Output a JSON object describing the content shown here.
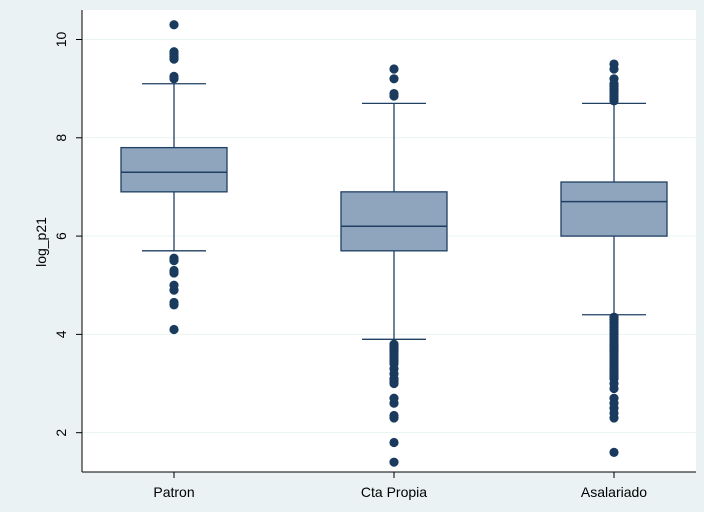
{
  "chart_data": {
    "type": "box",
    "ylabel": "log_p21",
    "ylim": [
      1.2,
      10.6
    ],
    "yticks": [
      2,
      4,
      6,
      8,
      10
    ],
    "grid": true,
    "categories": [
      "Patron",
      "Cta Propia",
      "Asalariado"
    ],
    "boxes": [
      {
        "category": "Patron",
        "whisker_low": 5.7,
        "q1": 6.9,
        "median": 7.3,
        "q3": 7.8,
        "whisker_high": 9.1,
        "outliers": [
          4.1,
          4.6,
          4.65,
          4.9,
          5.0,
          5.25,
          5.3,
          5.5,
          5.55,
          9.2,
          9.25,
          9.6,
          9.65,
          9.7,
          9.75,
          10.3
        ]
      },
      {
        "category": "Cta Propia",
        "whisker_low": 3.9,
        "q1": 5.7,
        "median": 6.2,
        "q3": 6.9,
        "whisker_high": 8.7,
        "outliers": [
          1.4,
          1.8,
          2.3,
          2.35,
          2.6,
          2.7,
          3.0,
          3.05,
          3.1,
          3.2,
          3.3,
          3.4,
          3.45,
          3.5,
          3.55,
          3.6,
          3.65,
          3.7,
          3.75,
          3.8,
          8.85,
          8.9,
          9.2,
          9.4
        ]
      },
      {
        "category": "Asalariado",
        "whisker_low": 4.4,
        "q1": 6.0,
        "median": 6.7,
        "q3": 7.1,
        "whisker_high": 8.7,
        "outliers": [
          1.6,
          2.3,
          2.4,
          2.5,
          2.6,
          2.7,
          2.9,
          3.0,
          3.1,
          3.15,
          3.2,
          3.25,
          3.3,
          3.35,
          3.4,
          3.45,
          3.5,
          3.55,
          3.6,
          3.65,
          3.7,
          3.75,
          3.8,
          3.85,
          3.9,
          3.95,
          4.0,
          4.05,
          4.1,
          4.15,
          4.2,
          4.25,
          4.3,
          4.35,
          8.75,
          8.8,
          8.85,
          8.9,
          8.95,
          9.0,
          9.05,
          9.1,
          9.2,
          9.4,
          9.5
        ]
      }
    ],
    "colors": {
      "box_fill": "#8fa5bd",
      "stroke": "#1f3f63",
      "outlier": "#1a3b5e",
      "grid": "#eaf2f3",
      "background": "#eaf2f3",
      "plot_area": "#ffffff"
    }
  }
}
